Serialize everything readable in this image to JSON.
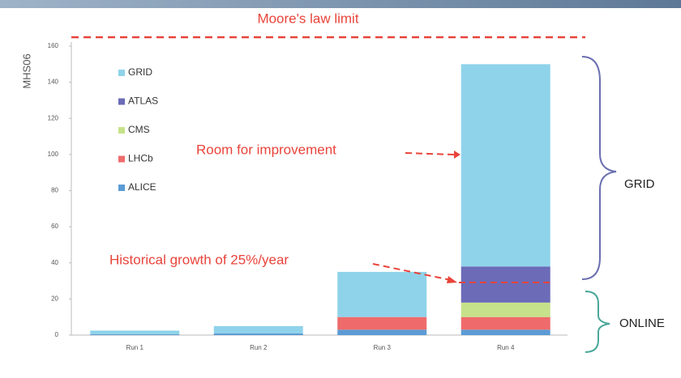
{
  "chart_data": {
    "type": "stacked_bar",
    "title": "Moore's law limit",
    "y_label": "MHS06",
    "categories": [
      "Run 1",
      "Run 2",
      "Run 3",
      "Run 4"
    ],
    "series": [
      {
        "name": "ALICE",
        "color": "#5b9bd5",
        "values": [
          0.5,
          1,
          3,
          3
        ]
      },
      {
        "name": "LHCb",
        "color": "#ef6b6b",
        "values": [
          0,
          0,
          7,
          7
        ]
      },
      {
        "name": "CMS",
        "color": "#c6e28a",
        "values": [
          0,
          0,
          0,
          8
        ]
      },
      {
        "name": "ATLAS",
        "color": "#6b6bb8",
        "values": [
          0,
          0,
          0,
          20
        ]
      },
      {
        "name": "GRID",
        "color": "#8fd3ea",
        "values": [
          2,
          4,
          25,
          112
        ]
      }
    ],
    "ylim": [
      0,
      160
    ],
    "yticks": [
      0,
      20,
      40,
      60,
      80,
      100,
      120,
      140,
      160
    ],
    "annotations": [
      "Room for improvement",
      "Historical growth of 25%/year",
      "GRID",
      "ONLINE"
    ]
  }
}
